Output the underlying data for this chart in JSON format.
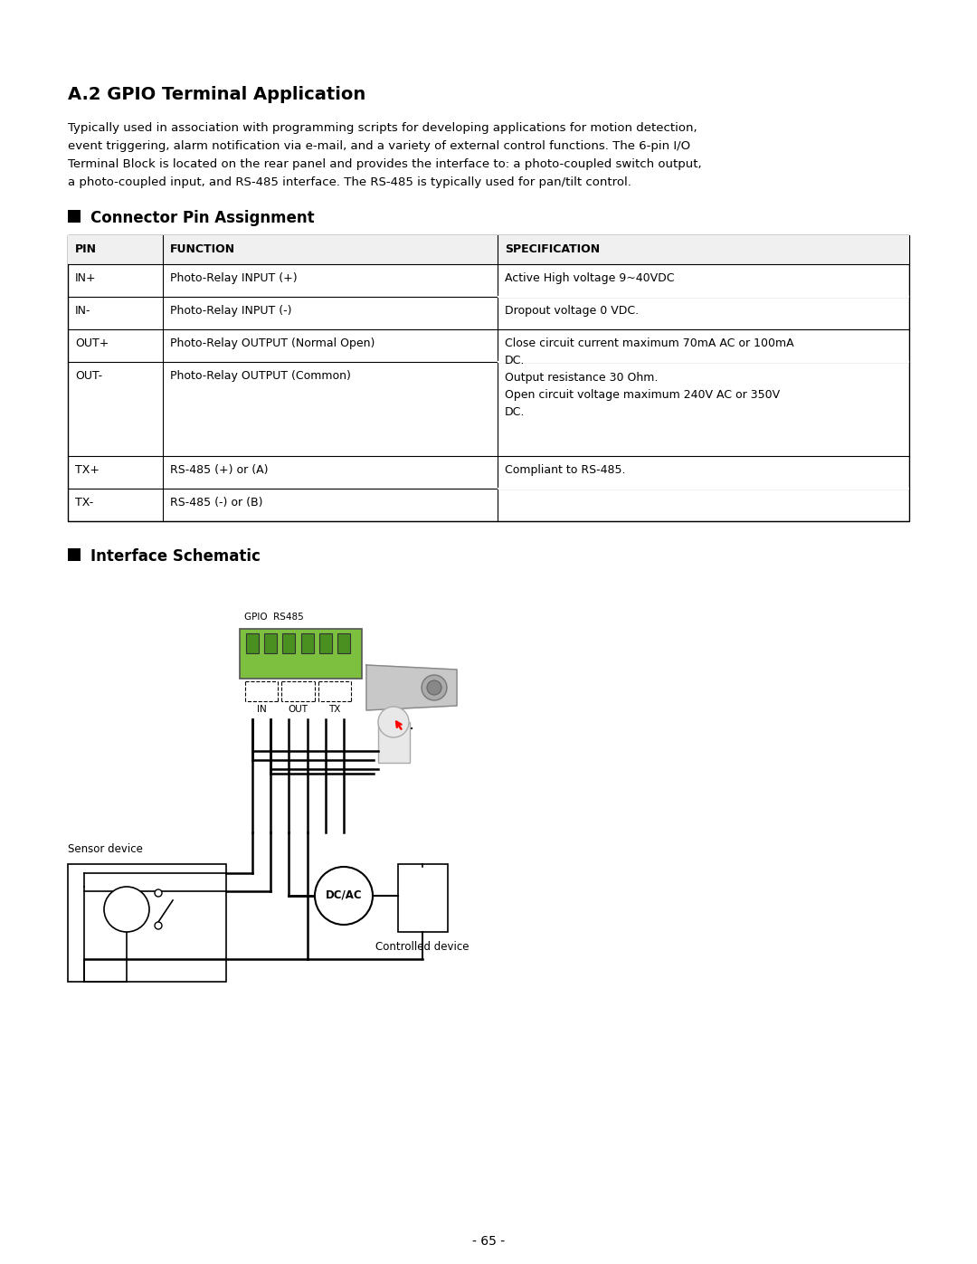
{
  "title": "A.2 GPIO Terminal Application",
  "intro_line1": "Typically used in association with programming scripts for developing applications for motion detection,",
  "intro_line2": "event triggering, alarm notification via e-mail, and a variety of external control functions. The 6-pin I/O",
  "intro_line3": "Terminal Block is located on the rear panel and provides the interface to: a photo-coupled switch output,",
  "intro_line4": "a photo-coupled input, and RS-485 interface. The RS-485 is typically used for pan/tilt control.",
  "section1": "Connector Pin Assignment",
  "section2": "Interface Schematic",
  "background_color": "#ffffff",
  "page_number": "- 65 -",
  "title_fs": 14,
  "body_fs": 9.5,
  "section_fs": 12,
  "table_header_fs": 9,
  "table_body_fs": 9
}
